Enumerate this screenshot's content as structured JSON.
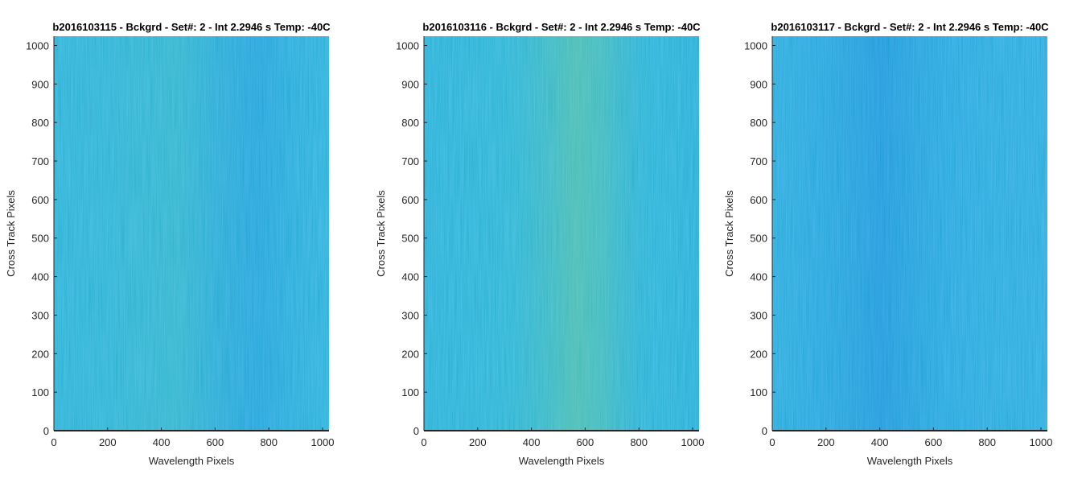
{
  "chart_data": [
    {
      "type": "heatmap",
      "title": "b2016103115 - Bckgrd - Set#: 2 - Int 2.2946 s Temp: -40C",
      "xlabel": "Wavelength Pixels",
      "ylabel": "Cross Track Pixels",
      "xlim": [
        0,
        1024
      ],
      "ylim": [
        0,
        1024
      ],
      "xticks": [
        0,
        200,
        400,
        600,
        800,
        1000
      ],
      "yticks": [
        0,
        100,
        200,
        300,
        400,
        500,
        600,
        700,
        800,
        900,
        1000
      ],
      "colormap": "parula",
      "base_color": "#1f9fd6",
      "grid": false,
      "legend": "none"
    },
    {
      "type": "heatmap",
      "title": "b2016103116 - Bckgrd - Set#: 2 - Int 2.2946 s Temp: -40C",
      "xlabel": "Wavelength Pixels",
      "ylabel": "Cross Track Pixels",
      "xlim": [
        0,
        1024
      ],
      "ylim": [
        0,
        1024
      ],
      "xticks": [
        0,
        200,
        400,
        600,
        800,
        1000
      ],
      "yticks": [
        0,
        100,
        200,
        300,
        400,
        500,
        600,
        700,
        800,
        900,
        1000
      ],
      "colormap": "parula",
      "base_color": "#1fa7cf",
      "grid": false,
      "legend": "none"
    },
    {
      "type": "heatmap",
      "title": "b2016103117 - Bckgrd - Set#: 2 - Int 2.2946 s Temp: -40C",
      "xlabel": "Wavelength Pixels",
      "ylabel": "Cross Track Pixels",
      "xlim": [
        0,
        1024
      ],
      "ylim": [
        0,
        1024
      ],
      "xticks": [
        0,
        200,
        400,
        600,
        800,
        1000
      ],
      "yticks": [
        0,
        100,
        200,
        300,
        400,
        500,
        600,
        700,
        800,
        900,
        1000
      ],
      "colormap": "parula",
      "base_color": "#1b94db",
      "grid": false,
      "legend": "none"
    }
  ]
}
